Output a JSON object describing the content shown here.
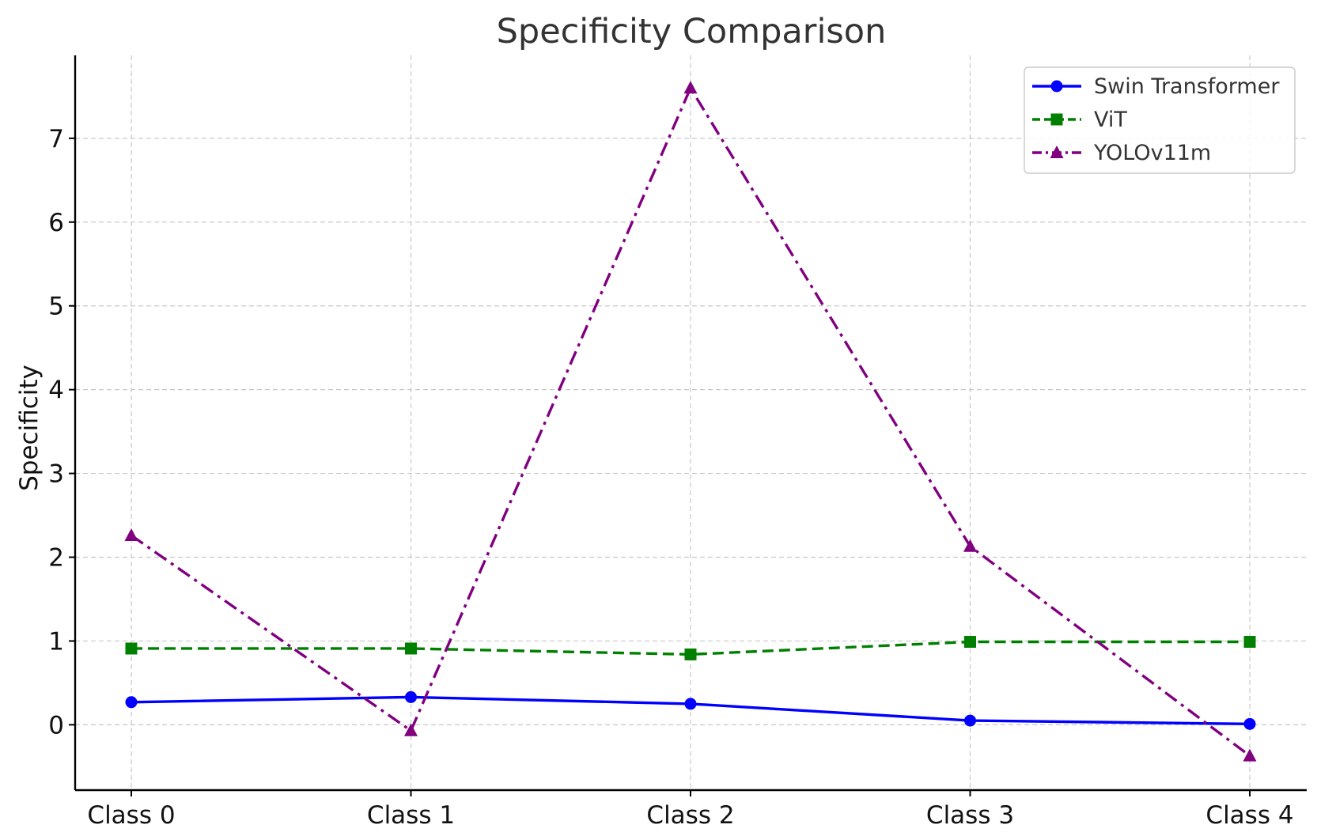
{
  "chart_data": {
    "type": "line",
    "title": "Specificity Comparison",
    "xlabel": "",
    "ylabel": "Specificity",
    "categories": [
      "Class 0",
      "Class 1",
      "Class 2",
      "Class 3",
      "Class 4"
    ],
    "ylim": [
      -0.78,
      7.99
    ],
    "yticks": [
      0,
      1,
      2,
      3,
      4,
      5,
      6,
      7
    ],
    "grid": true,
    "legend_position": "top-right",
    "series": [
      {
        "name": "Swin Transformer",
        "values": [
          0.27,
          0.33,
          0.25,
          0.05,
          0.01
        ],
        "color": "#0000ff",
        "marker": "circle",
        "linestyle": "solid"
      },
      {
        "name": "ViT",
        "values": [
          0.91,
          0.91,
          0.84,
          0.99,
          0.99
        ],
        "color": "#008000",
        "marker": "square",
        "linestyle": "dashed"
      },
      {
        "name": "YOLOv11m",
        "values": [
          2.26,
          -0.07,
          7.6,
          2.13,
          -0.37
        ],
        "color": "#800080",
        "marker": "triangle",
        "linestyle": "dashdot"
      }
    ]
  }
}
